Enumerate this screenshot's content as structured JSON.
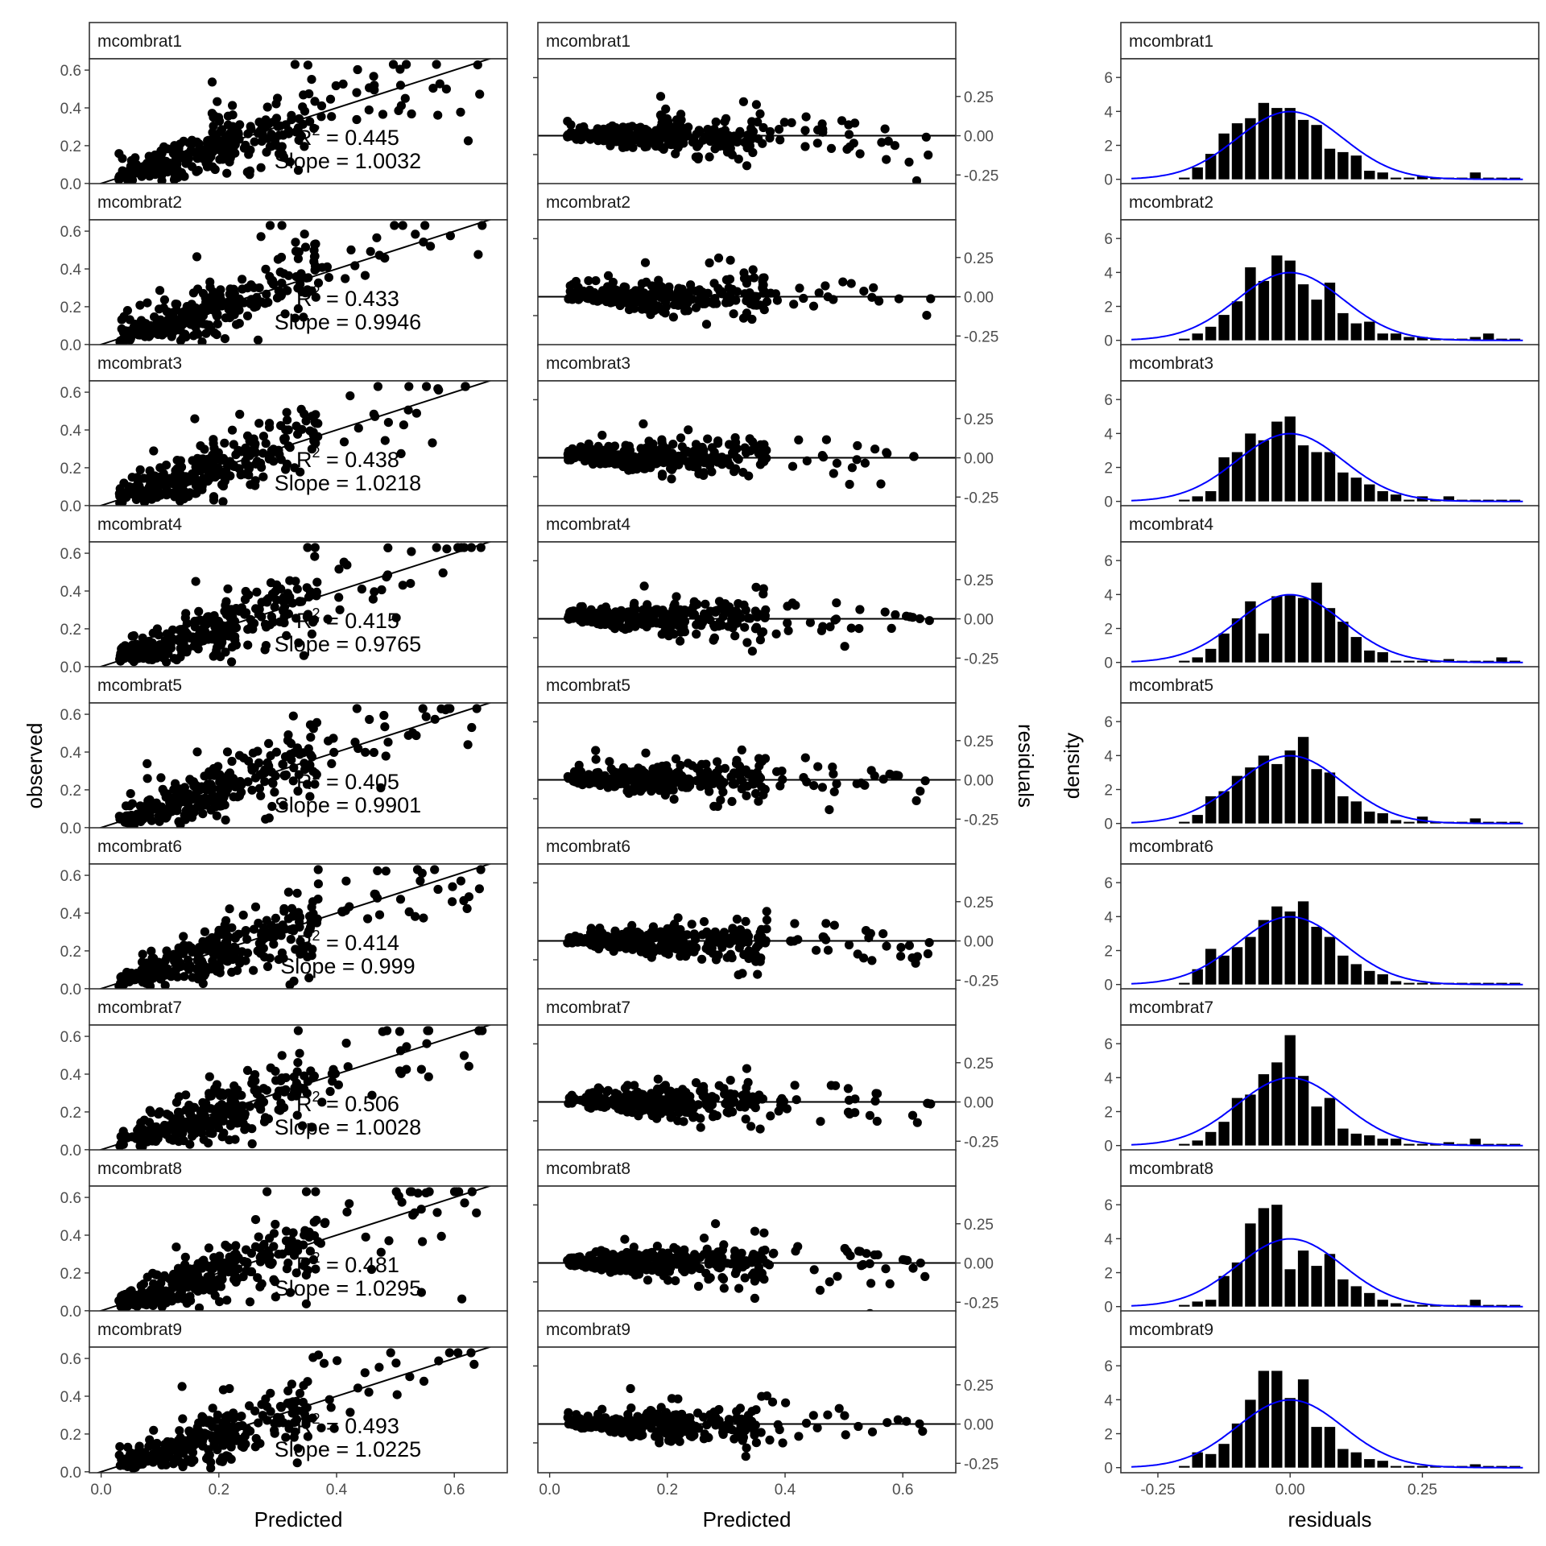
{
  "chart_data": {
    "type": "faceted-diagnostics",
    "panel_labels": [
      "mcombrat1",
      "mcombrat2",
      "mcombrat3",
      "mcombrat4",
      "mcombrat5",
      "mcombrat6",
      "mcombrat7",
      "mcombrat8",
      "mcombrat9"
    ],
    "annotations": [
      {
        "r2": "R",
        "r2_sup": "2",
        "r2_value": " = 0.445",
        "slope": "Slope = 1.0032"
      },
      {
        "r2": "R",
        "r2_sup": "2",
        "r2_value": " = 0.433",
        "slope": "Slope = 0.9946"
      },
      {
        "r2": "R",
        "r2_sup": "2",
        "r2_value": " = 0.438",
        "slope": "Slope = 1.0218"
      },
      {
        "r2": "R",
        "r2_sup": "2",
        "r2_value": " = 0.415",
        "slope": "Slope = 0.9765"
      },
      {
        "r2": "R",
        "r2_sup": "2",
        "r2_value": " = 0.405",
        "slope": "Slope = 0.9901"
      },
      {
        "r2": "R",
        "r2_sup": "2",
        "r2_value": " = 0.414",
        "slope": "Slope = 0.999"
      },
      {
        "r2": "R",
        "r2_sup": "2",
        "r2_value": " = 0.506",
        "slope": "Slope = 1.0028"
      },
      {
        "r2": "R",
        "r2_sup": "2",
        "r2_value": " = 0.481",
        "slope": "Slope = 1.0295"
      },
      {
        "r2": "R",
        "r2_sup": "2",
        "r2_value": " = 0.493",
        "slope": "Slope = 1.0225"
      }
    ],
    "r2": [
      0.445,
      0.433,
      0.438,
      0.415,
      0.405,
      0.414,
      0.506,
      0.481,
      0.493
    ],
    "slopes": [
      1.0032,
      0.9946,
      1.0218,
      0.9765,
      0.9901,
      0.999,
      1.0028,
      1.0295,
      1.0225
    ],
    "columns": [
      {
        "kind": "scatter-with-identity-line",
        "xlabel": "Predicted",
        "ylabel": "observed",
        "xlim": [
          -0.02,
          0.69
        ],
        "ylim": [
          -0.005,
          0.66
        ],
        "x_ticks": [
          0.0,
          0.2,
          0.4,
          0.6
        ],
        "x_tick_labels": [
          "0.0",
          "0.2",
          "0.4",
          "0.6"
        ],
        "y_ticks": [
          0.0,
          0.2,
          0.4,
          0.6
        ],
        "y_tick_labels": [
          "0.0",
          "0.2",
          "0.4",
          "0.6"
        ],
        "reference_line": {
          "intercept": 0,
          "slope": 1
        },
        "points_per_panel": 310
      },
      {
        "kind": "residuals-vs-predicted",
        "xlabel": "Predicted",
        "ylabel": "residuals",
        "xlim": [
          -0.02,
          0.69
        ],
        "ylim": [
          -0.31,
          0.49
        ],
        "x_ticks": [
          0.0,
          0.2,
          0.4,
          0.6
        ],
        "x_tick_labels": [
          "0.0",
          "0.2",
          "0.4",
          "0.6"
        ],
        "y_ticks": [
          0.25,
          0.0,
          -0.25
        ],
        "y_tick_labels": [
          "0.25",
          "0.00",
          "-0.25"
        ],
        "y_axis_position": "right",
        "reference_line": {
          "y": 0
        },
        "points_per_panel": 310
      },
      {
        "kind": "histogram-with-normal-density",
        "xlabel": "residuals",
        "ylabel": "density",
        "xlim": [
          -0.32,
          0.47
        ],
        "ylim": [
          -0.3,
          7.1
        ],
        "x_ticks": [
          -0.25,
          0.0,
          0.25
        ],
        "x_tick_labels": [
          "-0.25",
          "0.00",
          "0.25"
        ],
        "y_ticks": [
          0,
          2,
          4,
          6
        ],
        "y_tick_labels": [
          "0",
          "2",
          "4",
          "6"
        ],
        "bin_width": 0.025,
        "bin_centers": [
          -0.2,
          -0.175,
          -0.15,
          -0.125,
          -0.1,
          -0.075,
          -0.05,
          -0.025,
          0.0,
          0.025,
          0.05,
          0.075,
          0.1,
          0.125,
          0.15,
          0.175,
          0.2,
          0.225,
          0.25,
          0.275,
          0.3,
          0.325,
          0.35,
          0.375,
          0.4,
          0.425
        ],
        "curve_color": "#0000ff",
        "bar_color": "#000000",
        "normal_curve": {
          "mean": 0.0,
          "sd": 0.1
        },
        "density_values": [
          [
            0.1,
            0.7,
            1.5,
            2.7,
            3.3,
            3.6,
            4.5,
            4.2,
            4.2,
            3.5,
            3.2,
            1.8,
            1.6,
            1.4,
            0.5,
            0.4,
            0.1,
            0.1,
            0.2,
            0.1,
            0.1,
            0.1,
            0.4,
            0.1,
            0.1,
            0.1
          ],
          [
            0.1,
            0.4,
            0.8,
            1.5,
            2.3,
            4.3,
            3.5,
            5.0,
            4.7,
            3.3,
            2.4,
            3.4,
            1.6,
            1.0,
            1.1,
            0.4,
            0.4,
            0.2,
            0.2,
            0.1,
            0.1,
            0.1,
            0.2,
            0.4,
            0.1,
            0.1
          ],
          [
            0.1,
            0.3,
            0.6,
            2.6,
            2.9,
            4.0,
            3.6,
            4.7,
            5.0,
            3.3,
            2.9,
            2.9,
            1.7,
            1.4,
            1.0,
            0.6,
            0.4,
            0.1,
            0.3,
            0.1,
            0.3,
            0.1,
            0.1,
            0.1,
            0.1,
            0.1
          ],
          [
            0.1,
            0.3,
            0.8,
            1.7,
            2.6,
            3.6,
            1.7,
            3.9,
            4.0,
            3.8,
            4.7,
            3.2,
            2.4,
            1.5,
            0.7,
            0.6,
            0.1,
            0.1,
            0.1,
            0.1,
            0.2,
            0.1,
            0.1,
            0.1,
            0.3,
            0.1
          ],
          [
            0.1,
            0.5,
            1.6,
            1.9,
            2.8,
            3.3,
            4.0,
            3.5,
            4.3,
            5.1,
            3.2,
            3.0,
            1.6,
            1.3,
            0.7,
            0.6,
            0.2,
            0.1,
            0.4,
            0.1,
            0.1,
            0.1,
            0.3,
            0.1,
            0.1,
            0.1
          ],
          [
            0.1,
            0.9,
            2.1,
            1.7,
            2.2,
            2.8,
            3.8,
            4.6,
            4.3,
            4.9,
            3.4,
            2.8,
            1.7,
            1.2,
            0.8,
            0.6,
            0.2,
            0.1,
            0.1,
            0.1,
            0.1,
            0.1,
            0.1,
            0.1,
            0.1,
            0.1
          ],
          [
            0.1,
            0.3,
            0.8,
            1.4,
            2.8,
            3.0,
            4.2,
            4.9,
            6.5,
            4.1,
            2.3,
            2.8,
            1.0,
            0.7,
            0.6,
            0.4,
            0.4,
            0.1,
            0.1,
            0.1,
            0.2,
            0.1,
            0.4,
            0.1,
            0.1,
            0.1
          ],
          [
            0.1,
            0.3,
            0.4,
            1.8,
            2.6,
            4.9,
            5.8,
            6.0,
            2.2,
            3.3,
            2.4,
            3.1,
            1.6,
            1.2,
            0.8,
            0.4,
            0.2,
            0.1,
            0.1,
            0.1,
            0.1,
            0.1,
            0.4,
            0.1,
            0.1,
            0.1
          ],
          [
            0.1,
            0.9,
            0.8,
            1.4,
            2.6,
            4.0,
            5.7,
            5.7,
            4.1,
            5.2,
            2.4,
            2.4,
            1.1,
            0.9,
            0.5,
            0.4,
            0.1,
            0.1,
            0.1,
            0.1,
            0.1,
            0.1,
            0.2,
            0.1,
            0.1,
            0.1
          ]
        ]
      }
    ],
    "grid": false,
    "legend": "none"
  }
}
